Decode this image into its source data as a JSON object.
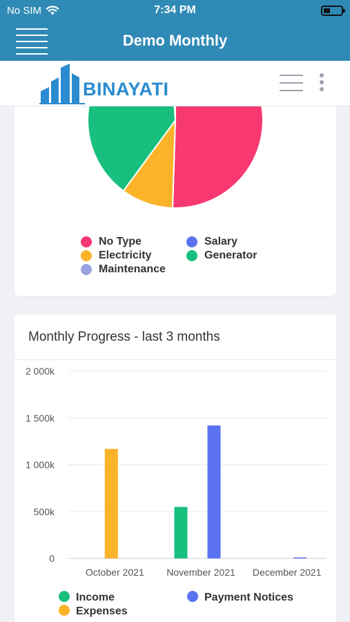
{
  "status": {
    "carrier": "No SIM",
    "time": "7:34 PM"
  },
  "nav": {
    "title": "Demo Monthly"
  },
  "brand": {
    "logo_text": "BINAYATI"
  },
  "pie_card": {
    "legend": [
      {
        "label": "No Type",
        "color": "#f73871"
      },
      {
        "label": "Salary",
        "color": "#5a72f0"
      },
      {
        "label": "Electricity",
        "color": "#fbb32a"
      },
      {
        "label": "Generator",
        "color": "#18bf7e"
      },
      {
        "label": "Maintenance",
        "color": "#97a3df"
      }
    ]
  },
  "bar_card": {
    "title": "Monthly Progress - last 3 months"
  },
  "chart_data": [
    {
      "type": "pie",
      "title": "",
      "slices": [
        {
          "label": "No Type",
          "value": 50.5,
          "color": "#f73871"
        },
        {
          "label": "Electricity",
          "value": 9.6,
          "color": "#fbb32a"
        },
        {
          "label": "Generator",
          "value": 38.8,
          "color": "#18bf7e"
        },
        {
          "label": "Maintenance",
          "value": 1.1,
          "color": "#97a3df"
        },
        {
          "label": "Salary",
          "value": 0,
          "color": "#5a72f0"
        }
      ],
      "note_visible": "pie partially scrolled out of view"
    },
    {
      "type": "bar",
      "title": "Monthly Progress - last 3 months",
      "categories": [
        "October 2021",
        "November 2021",
        "December 2021"
      ],
      "series": [
        {
          "name": "Income",
          "color": "#18bf7e",
          "values": [
            0,
            550,
            0
          ]
        },
        {
          "name": "Expenses",
          "color": "#fbb32a",
          "values": [
            1170,
            0,
            0
          ]
        },
        {
          "name": "Payment Notices",
          "color": "#5a72f0",
          "values": [
            0,
            1420,
            10
          ]
        }
      ],
      "yticks": [
        "0",
        "500k",
        "1 000k",
        "1 500k",
        "2 000k"
      ],
      "ylim": [
        0,
        2000
      ],
      "grid": true,
      "legend_position": "bottom"
    }
  ]
}
